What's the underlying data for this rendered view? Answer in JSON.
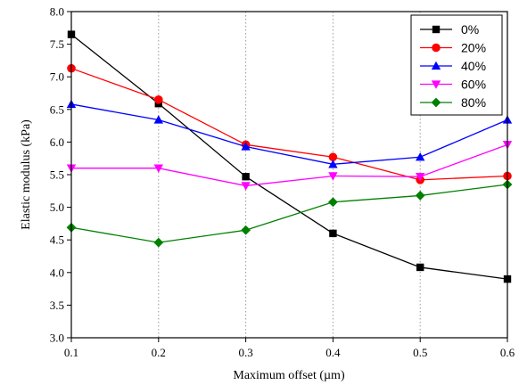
{
  "chart_data": {
    "type": "line",
    "xlabel": "Maximum offset (µm)",
    "ylabel": "Elastic modulus (kPa)",
    "xlim": [
      0.1,
      0.6
    ],
    "ylim": [
      3.0,
      8.0
    ],
    "x_ticks": [
      "0.1",
      "0.2",
      "0.3",
      "0.4",
      "0.5",
      "0.6"
    ],
    "y_ticks": [
      "3.0",
      "3.5",
      "4.0",
      "4.5",
      "5.0",
      "5.5",
      "6.0",
      "6.5",
      "7.0",
      "7.5",
      "8.0"
    ],
    "x": [
      0.1,
      0.2,
      0.3,
      0.4,
      0.5,
      0.6
    ],
    "grid": "vertical dotted",
    "legend_position": "top-right",
    "series": [
      {
        "name": "0%",
        "color": "#000000",
        "marker": "square",
        "values": [
          7.65,
          6.59,
          5.47,
          4.6,
          4.08,
          3.9
        ]
      },
      {
        "name": "20%",
        "color": "#ff0000",
        "marker": "circle",
        "values": [
          7.13,
          6.65,
          5.96,
          5.77,
          5.42,
          5.48
        ]
      },
      {
        "name": "40%",
        "color": "#0000ff",
        "marker": "triangle-up",
        "values": [
          6.58,
          6.34,
          5.93,
          5.66,
          5.77,
          6.34
        ]
      },
      {
        "name": "60%",
        "color": "#ff00ff",
        "marker": "triangle-down",
        "values": [
          5.6,
          5.6,
          5.33,
          5.48,
          5.47,
          5.96
        ]
      },
      {
        "name": "80%",
        "color": "#008000",
        "marker": "diamond",
        "values": [
          4.69,
          4.46,
          4.65,
          5.08,
          5.18,
          5.35
        ]
      }
    ]
  }
}
